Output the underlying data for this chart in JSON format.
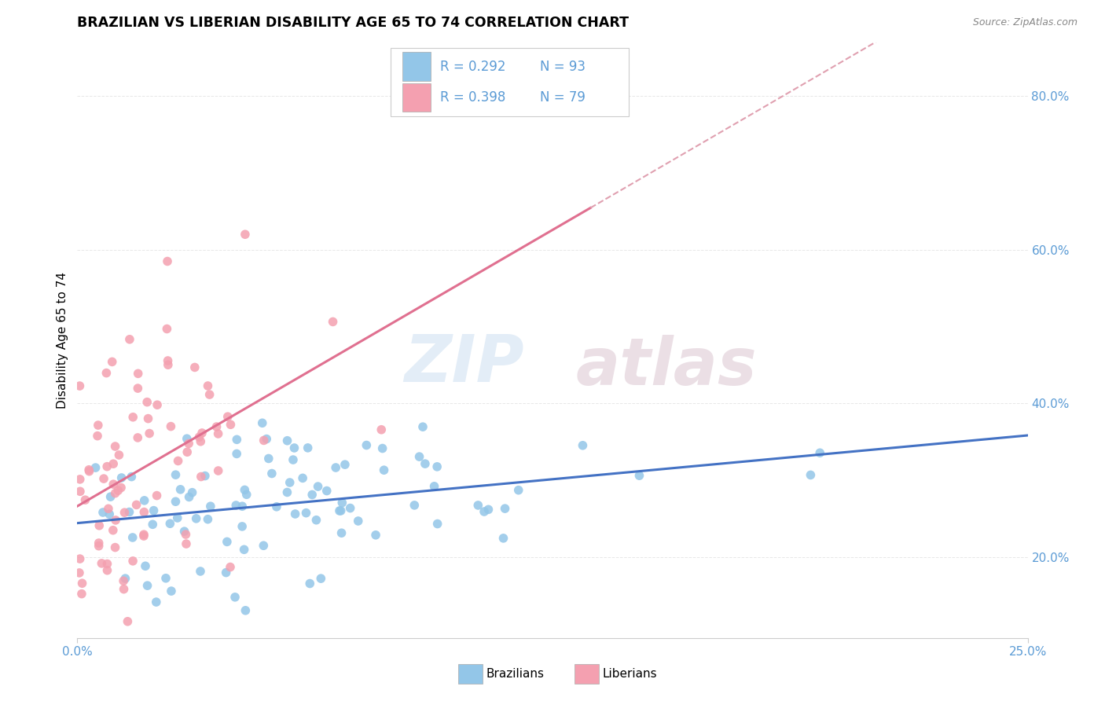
{
  "title": "BRAZILIAN VS LIBERIAN DISABILITY AGE 65 TO 74 CORRELATION CHART",
  "source_text": "Source: ZipAtlas.com",
  "ylabel": "Disability Age 65 to 74",
  "xmin": 0.0,
  "xmax": 0.25,
  "ymin": 0.095,
  "ymax": 0.87,
  "yticks": [
    0.2,
    0.4,
    0.6,
    0.8
  ],
  "ytick_labels": [
    "20.0%",
    "40.0%",
    "60.0%",
    "80.0%"
  ],
  "xtick_left": "0.0%",
  "xtick_right": "25.0%",
  "brazilian_color": "#93C6E8",
  "liberian_color": "#F4A0B0",
  "brazilian_line_color": "#4472C4",
  "liberian_line_color": "#E07090",
  "dashed_line_color": "#E0A0B0",
  "tick_color": "#5B9BD5",
  "legend_R1": "R = 0.292",
  "legend_N1": "N = 93",
  "legend_R2": "R = 0.398",
  "legend_N2": "N = 79",
  "bottom_label_1": "Brazilians",
  "bottom_label_2": "Liberians",
  "background_color": "#FFFFFF",
  "grid_color": "#E8E8E8",
  "source_color": "#888888",
  "watermark_zip_color": "#C8DCF0",
  "watermark_atlas_color": "#D8C0CC",
  "br_seed": 42,
  "lib_seed": 7
}
